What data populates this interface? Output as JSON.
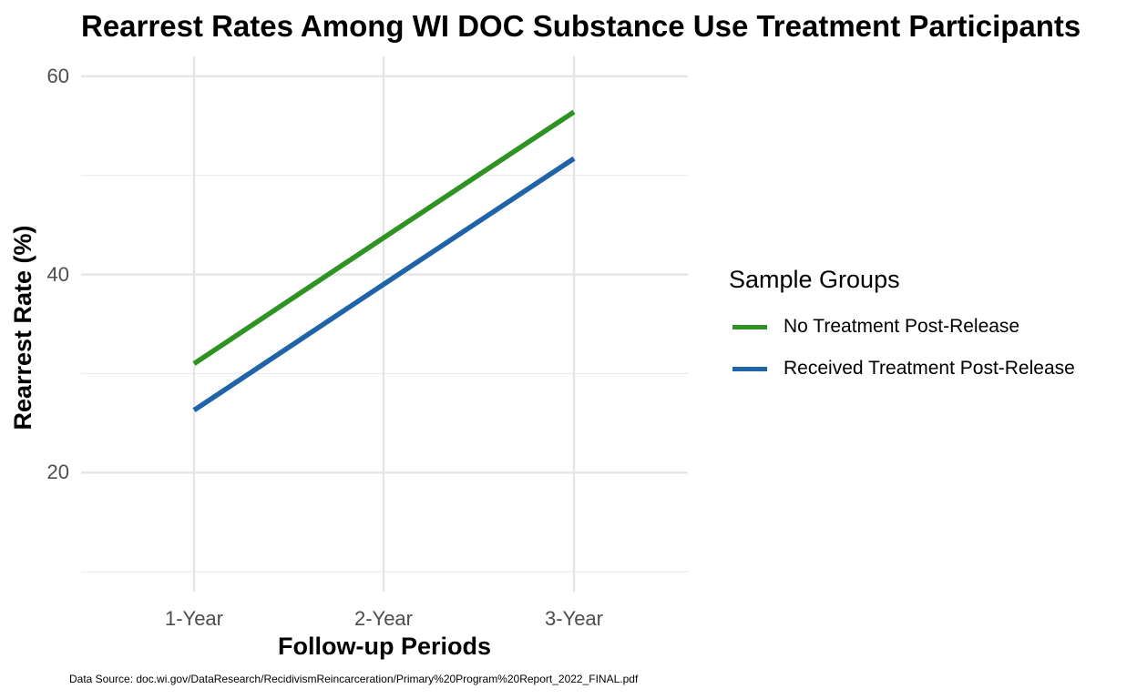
{
  "chart_data": {
    "type": "line",
    "title": "Rearrest Rates Among WI DOC Substance Use Treatment Participants",
    "xlabel": "Follow-up Periods",
    "ylabel": "Rearrest Rate (%)",
    "categories": [
      "1-Year",
      "2-Year",
      "3-Year"
    ],
    "ylim": [
      8,
      62
    ],
    "yticks": [
      20,
      40,
      60
    ],
    "y_minor_ticks": [
      10,
      30,
      50
    ],
    "grid": true,
    "legend_title": "Sample Groups",
    "legend_position": "right",
    "series": [
      {
        "name": "No Treatment Post-Release",
        "values": [
          31.0,
          43.7,
          56.4
        ],
        "color": "#2e9322"
      },
      {
        "name": "Received Treatment Post-Release",
        "values": [
          26.3,
          39.0,
          51.7
        ],
        "color": "#1f63a8"
      }
    ],
    "caption": "Data Source: doc.wi.gov/DataResearch/RecidivismReincarceration/Primary%20Program%20Report_2022_FINAL.pdf"
  }
}
